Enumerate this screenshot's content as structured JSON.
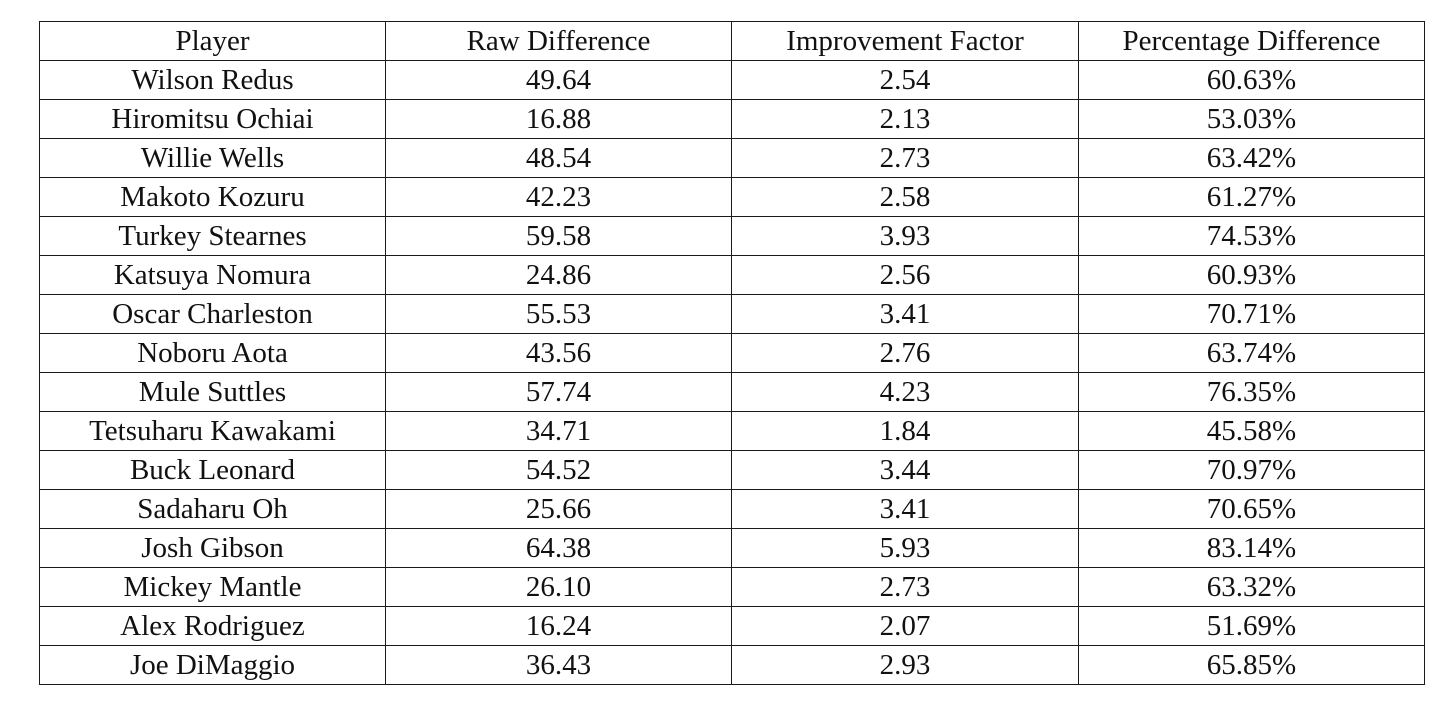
{
  "table": {
    "headers": [
      "Player",
      "Raw Difference",
      "Improvement Factor",
      "Percentage Difference"
    ],
    "rows": [
      [
        "Wilson Redus",
        "49.64",
        "2.54",
        "60.63%"
      ],
      [
        "Hiromitsu Ochiai",
        "16.88",
        "2.13",
        "53.03%"
      ],
      [
        "Willie Wells",
        "48.54",
        "2.73",
        "63.42%"
      ],
      [
        "Makoto Kozuru",
        "42.23",
        "2.58",
        "61.27%"
      ],
      [
        "Turkey Stearnes",
        "59.58",
        "3.93",
        "74.53%"
      ],
      [
        "Katsuya Nomura",
        "24.86",
        "2.56",
        "60.93%"
      ],
      [
        "Oscar Charleston",
        "55.53",
        "3.41",
        "70.71%"
      ],
      [
        "Noboru Aota",
        "43.56",
        "2.76",
        "63.74%"
      ],
      [
        "Mule Suttles",
        "57.74",
        "4.23",
        "76.35%"
      ],
      [
        "Tetsuharu Kawakami",
        "34.71",
        "1.84",
        "45.58%"
      ],
      [
        "Buck Leonard",
        "54.52",
        "3.44",
        "70.97%"
      ],
      [
        "Sadaharu Oh",
        "25.66",
        "3.41",
        "70.65%"
      ],
      [
        "Josh Gibson",
        "64.38",
        "5.93",
        "83.14%"
      ],
      [
        "Mickey Mantle",
        "26.10",
        "2.73",
        "63.32%"
      ],
      [
        "Alex Rodriguez",
        "16.24",
        "2.07",
        "51.69%"
      ],
      [
        "Joe DiMaggio",
        "36.43",
        "2.93",
        "65.85%"
      ]
    ]
  }
}
